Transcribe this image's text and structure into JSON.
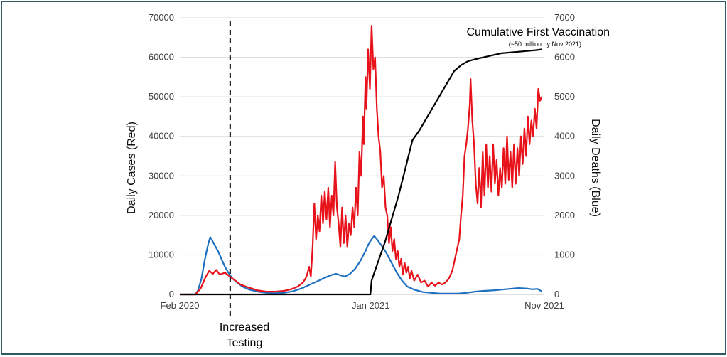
{
  "chart_data": {
    "type": "line",
    "title": "",
    "x": {
      "range": [
        0,
        21
      ],
      "unit": "months since Feb 2020",
      "tick_values": [
        0,
        11,
        21
      ],
      "tick_labels": [
        "Feb 2020",
        "Jan 2021",
        "Nov 2021"
      ]
    },
    "y_left": {
      "label": "Daily Cases (Red)",
      "range": [
        0,
        70000
      ],
      "ticks": [
        0,
        10000,
        20000,
        30000,
        40000,
        50000,
        60000,
        70000
      ],
      "grid": true
    },
    "y_right": {
      "label": "Daily Deaths (Blue)",
      "range": [
        0,
        7000
      ],
      "ticks": [
        0,
        1000,
        2000,
        3000,
        4000,
        5000,
        6000,
        7000
      ]
    },
    "series": [
      {
        "name": "Daily Cases",
        "axis": "left",
        "color": "#e8121a",
        "points": [
          [
            0,
            0
          ],
          [
            0.9,
            0
          ],
          [
            1.2,
            1500
          ],
          [
            1.5,
            4500
          ],
          [
            1.7,
            6000
          ],
          [
            1.9,
            5200
          ],
          [
            2.1,
            6200
          ],
          [
            2.3,
            5000
          ],
          [
            2.6,
            5500
          ],
          [
            2.9,
            4500
          ],
          [
            3.2,
            3500
          ],
          [
            3.5,
            2500
          ],
          [
            4.0,
            1700
          ],
          [
            4.5,
            1000
          ],
          [
            5.0,
            700
          ],
          [
            5.5,
            700
          ],
          [
            6.0,
            900
          ],
          [
            6.4,
            1300
          ],
          [
            6.8,
            2000
          ],
          [
            7.1,
            3000
          ],
          [
            7.3,
            4500
          ],
          [
            7.45,
            7000
          ],
          [
            7.55,
            4500
          ],
          [
            7.65,
            12000
          ],
          [
            7.75,
            23000
          ],
          [
            7.85,
            14000
          ],
          [
            7.95,
            20000
          ],
          [
            8.05,
            16000
          ],
          [
            8.15,
            25000
          ],
          [
            8.25,
            18000
          ],
          [
            8.35,
            26000
          ],
          [
            8.45,
            19000
          ],
          [
            8.55,
            27000
          ],
          [
            8.65,
            17000
          ],
          [
            8.75,
            25000
          ],
          [
            8.85,
            20000
          ],
          [
            8.95,
            33500
          ],
          [
            9.05,
            22000
          ],
          [
            9.15,
            18000
          ],
          [
            9.25,
            12000
          ],
          [
            9.35,
            22000
          ],
          [
            9.45,
            13000
          ],
          [
            9.55,
            20000
          ],
          [
            9.65,
            12000
          ],
          [
            9.75,
            18000
          ],
          [
            9.85,
            15000
          ],
          [
            9.95,
            22000
          ],
          [
            10.05,
            17000
          ],
          [
            10.15,
            27000
          ],
          [
            10.25,
            20000
          ],
          [
            10.35,
            36000
          ],
          [
            10.45,
            30000
          ],
          [
            10.55,
            45000
          ],
          [
            10.6,
            38000
          ],
          [
            10.7,
            55000
          ],
          [
            10.75,
            47000
          ],
          [
            10.85,
            62000
          ],
          [
            10.95,
            52000
          ],
          [
            11.05,
            68000
          ],
          [
            11.15,
            57000
          ],
          [
            11.25,
            60000
          ],
          [
            11.35,
            47000
          ],
          [
            11.45,
            40000
          ],
          [
            11.55,
            36000
          ],
          [
            11.65,
            27000
          ],
          [
            11.75,
            30000
          ],
          [
            11.85,
            22000
          ],
          [
            11.95,
            20000
          ],
          [
            12.05,
            13000
          ],
          [
            12.15,
            17000
          ],
          [
            12.25,
            11000
          ],
          [
            12.35,
            14000
          ],
          [
            12.45,
            9000
          ],
          [
            12.55,
            11000
          ],
          [
            12.65,
            7000
          ],
          [
            12.75,
            9000
          ],
          [
            12.85,
            5000
          ],
          [
            12.95,
            8000
          ],
          [
            13.05,
            5500
          ],
          [
            13.15,
            7000
          ],
          [
            13.25,
            4000
          ],
          [
            13.35,
            6000
          ],
          [
            13.5,
            3500
          ],
          [
            13.7,
            5000
          ],
          [
            13.9,
            3000
          ],
          [
            14.1,
            3500
          ],
          [
            14.3,
            2000
          ],
          [
            14.5,
            3000
          ],
          [
            14.7,
            2200
          ],
          [
            14.9,
            3000
          ],
          [
            15.1,
            2500
          ],
          [
            15.3,
            3000
          ],
          [
            15.5,
            4000
          ],
          [
            15.7,
            6000
          ],
          [
            15.9,
            10000
          ],
          [
            16.1,
            14000
          ],
          [
            16.2,
            20000
          ],
          [
            16.3,
            25000
          ],
          [
            16.4,
            35000
          ],
          [
            16.5,
            38000
          ],
          [
            16.6,
            42000
          ],
          [
            16.7,
            48000
          ],
          [
            16.75,
            54500
          ],
          [
            16.85,
            44000
          ],
          [
            16.95,
            38000
          ],
          [
            17.05,
            28000
          ],
          [
            17.15,
            23000
          ],
          [
            17.25,
            32000
          ],
          [
            17.35,
            22000
          ],
          [
            17.45,
            36000
          ],
          [
            17.55,
            25000
          ],
          [
            17.65,
            38000
          ],
          [
            17.75,
            27000
          ],
          [
            17.85,
            35000
          ],
          [
            17.95,
            26000
          ],
          [
            18.05,
            38000
          ],
          [
            18.15,
            28000
          ],
          [
            18.25,
            34000
          ],
          [
            18.35,
            25000
          ],
          [
            18.45,
            32000
          ],
          [
            18.55,
            27000
          ],
          [
            18.65,
            37000
          ],
          [
            18.75,
            28000
          ],
          [
            18.85,
            40000
          ],
          [
            18.95,
            29000
          ],
          [
            19.05,
            36000
          ],
          [
            19.15,
            27000
          ],
          [
            19.25,
            38000
          ],
          [
            19.35,
            28000
          ],
          [
            19.45,
            37000
          ],
          [
            19.55,
            30000
          ],
          [
            19.65,
            40000
          ],
          [
            19.75,
            33000
          ],
          [
            19.85,
            42000
          ],
          [
            19.95,
            35000
          ],
          [
            20.05,
            45000
          ],
          [
            20.15,
            38000
          ],
          [
            20.25,
            44000
          ],
          [
            20.35,
            40000
          ],
          [
            20.45,
            47000
          ],
          [
            20.55,
            42000
          ],
          [
            20.65,
            52000
          ],
          [
            20.75,
            49000
          ],
          [
            20.85,
            50000
          ]
        ]
      },
      {
        "name": "Daily Deaths",
        "axis": "right",
        "color": "#1e6fbf",
        "points": [
          [
            0,
            0
          ],
          [
            0.9,
            0
          ],
          [
            1.05,
            100
          ],
          [
            1.25,
            400
          ],
          [
            1.45,
            900
          ],
          [
            1.65,
            1300
          ],
          [
            1.75,
            1450
          ],
          [
            1.85,
            1380
          ],
          [
            2.0,
            1250
          ],
          [
            2.2,
            1100
          ],
          [
            2.4,
            900
          ],
          [
            2.6,
            700
          ],
          [
            2.8,
            550
          ],
          [
            3.0,
            420
          ],
          [
            3.3,
            300
          ],
          [
            3.6,
            200
          ],
          [
            4.0,
            120
          ],
          [
            4.5,
            70
          ],
          [
            5.0,
            40
          ],
          [
            5.5,
            30
          ],
          [
            6.0,
            40
          ],
          [
            6.5,
            80
          ],
          [
            7.0,
            150
          ],
          [
            7.5,
            250
          ],
          [
            8.0,
            350
          ],
          [
            8.5,
            450
          ],
          [
            8.8,
            500
          ],
          [
            9.0,
            520
          ],
          [
            9.3,
            480
          ],
          [
            9.5,
            450
          ],
          [
            9.8,
            520
          ],
          [
            10.1,
            650
          ],
          [
            10.4,
            850
          ],
          [
            10.7,
            1100
          ],
          [
            10.9,
            1300
          ],
          [
            11.1,
            1430
          ],
          [
            11.2,
            1480
          ],
          [
            11.35,
            1400
          ],
          [
            11.6,
            1250
          ],
          [
            11.9,
            1050
          ],
          [
            12.2,
            800
          ],
          [
            12.5,
            550
          ],
          [
            12.8,
            350
          ],
          [
            13.1,
            200
          ],
          [
            13.5,
            120
          ],
          [
            14.0,
            60
          ],
          [
            15.0,
            20
          ],
          [
            16.0,
            20
          ],
          [
            16.5,
            40
          ],
          [
            17.0,
            70
          ],
          [
            17.5,
            90
          ],
          [
            18.0,
            100
          ],
          [
            18.5,
            120
          ],
          [
            19.0,
            140
          ],
          [
            19.5,
            160
          ],
          [
            20.0,
            150
          ],
          [
            20.3,
            130
          ],
          [
            20.6,
            140
          ],
          [
            20.85,
            80
          ]
        ]
      },
      {
        "name": "Cumulative First Vaccination",
        "axis": "right",
        "color": "#000000",
        "points": [
          [
            0,
            0
          ],
          [
            10.98,
            0
          ],
          [
            11.05,
            350
          ],
          [
            11.4,
            800
          ],
          [
            11.8,
            1300
          ],
          [
            12.2,
            1900
          ],
          [
            12.6,
            2500
          ],
          [
            13.0,
            3200
          ],
          [
            13.4,
            3900
          ],
          [
            13.8,
            4150
          ],
          [
            14.2,
            4450
          ],
          [
            14.6,
            4750
          ],
          [
            15.0,
            5050
          ],
          [
            15.4,
            5350
          ],
          [
            15.8,
            5650
          ],
          [
            16.2,
            5800
          ],
          [
            16.6,
            5900
          ],
          [
            17.0,
            5950
          ],
          [
            17.5,
            6000
          ],
          [
            18.0,
            6050
          ],
          [
            18.5,
            6100
          ],
          [
            19.0,
            6120
          ],
          [
            19.5,
            6140
          ],
          [
            20.0,
            6160
          ],
          [
            20.5,
            6180
          ],
          [
            20.85,
            6200
          ]
        ]
      }
    ],
    "annotations": [
      {
        "text": "Increased Testing",
        "lines": [
          "Increased",
          "Testing"
        ],
        "x": 2.9
      },
      {
        "text": "Cumulative First Vaccination",
        "note": "(~50 million by Nov 2021)"
      }
    ]
  }
}
